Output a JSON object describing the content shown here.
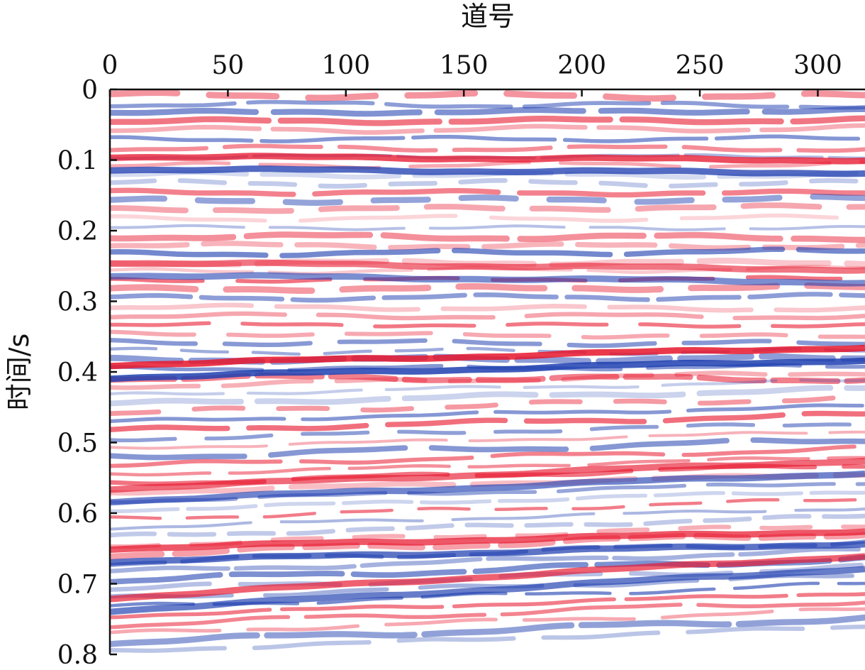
{
  "chart_data": {
    "type": "heatmap",
    "title": "",
    "xlabel": "道号",
    "ylabel": "时间/s",
    "x_axis_position": "top",
    "xlim": [
      0,
      320
    ],
    "ylim": [
      0,
      0.8
    ],
    "y_inverted": true,
    "x_ticks": [
      0,
      50,
      100,
      150,
      200,
      250,
      300
    ],
    "x_tick_labels": [
      "0",
      "50",
      "100",
      "150",
      "200",
      "250",
      "300"
    ],
    "y_ticks": [
      0,
      0.1,
      0.2,
      0.3,
      0.4,
      0.5,
      0.6,
      0.7,
      0.8
    ],
    "y_tick_labels": [
      "0",
      "0.1",
      "0.2",
      "0.3",
      "0.4",
      "0.5",
      "0.6",
      "0.7",
      "0.8"
    ],
    "colormap": [
      "#1f3fb0",
      "#ffffff",
      "#e8162d"
    ],
    "colormap_description": "seismic blue-white-red amplitude section",
    "grid": false,
    "legend": "none",
    "dominant_events": [
      {
        "time_at_trace_0": 0.4,
        "time_at_trace_320": 0.375,
        "polarity": "red-blue doublet",
        "strength": 1.0
      },
      {
        "time_at_trace_0": 0.105,
        "time_at_trace_320": 0.11,
        "polarity": "blue-red",
        "strength": 0.9
      },
      {
        "time_at_trace_0": 0.255,
        "time_at_trace_320": 0.265,
        "polarity": "blue",
        "strength": 0.7
      },
      {
        "time_at_trace_0": 0.575,
        "time_at_trace_320": 0.535,
        "polarity": "blue",
        "strength": 0.75
      },
      {
        "time_at_trace_0": 0.66,
        "time_at_trace_320": 0.635,
        "polarity": "red-blue",
        "strength": 0.85
      },
      {
        "time_at_trace_0": 0.73,
        "time_at_trace_320": 0.67,
        "polarity": "red-blue",
        "strength": 0.8
      }
    ]
  }
}
